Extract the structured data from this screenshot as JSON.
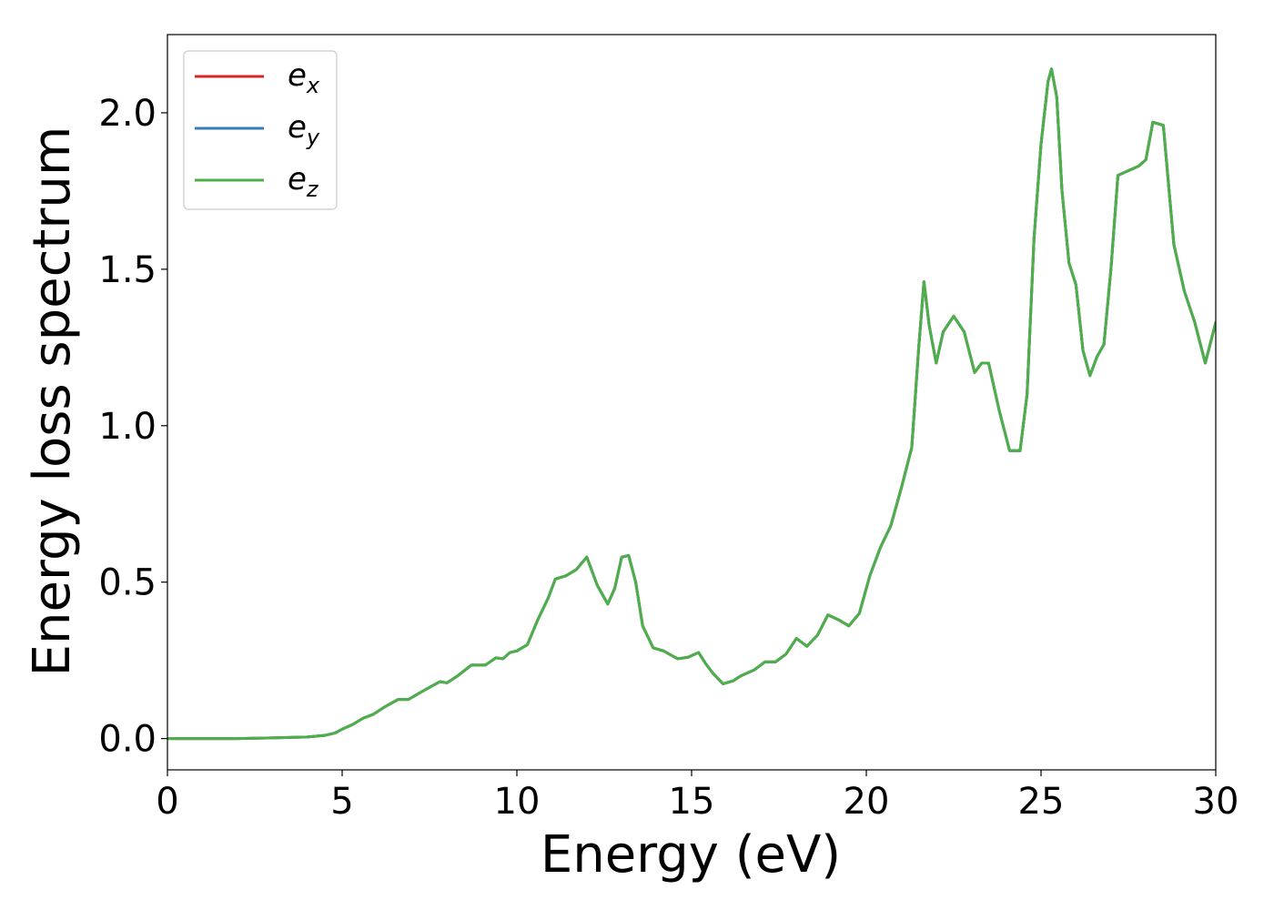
{
  "chart_data": {
    "type": "line",
    "xlabel": "Energy (eV)",
    "ylabel": "Energy loss spectrum",
    "xlim": [
      0,
      30
    ],
    "ylim": [
      -0.1,
      2.25
    ],
    "xticks": [
      0,
      5,
      10,
      15,
      20,
      25,
      30
    ],
    "xtick_labels": [
      "0",
      "5",
      "10",
      "15",
      "20",
      "25",
      "30"
    ],
    "yticks": [
      0.0,
      0.5,
      1.0,
      1.5,
      2.0
    ],
    "ytick_labels": [
      "0.0",
      "0.5",
      "1.0",
      "1.5",
      "2.0"
    ],
    "grid": false,
    "legend_position": "top-left",
    "x": [
      0,
      1,
      2,
      3,
      4,
      4.5,
      4.8,
      5.0,
      5.3,
      5.6,
      5.9,
      6.2,
      6.6,
      6.9,
      7.2,
      7.6,
      7.8,
      8.0,
      8.3,
      8.7,
      9.1,
      9.4,
      9.6,
      9.8,
      10.0,
      10.3,
      10.6,
      10.9,
      11.1,
      11.4,
      11.7,
      12.0,
      12.3,
      12.6,
      12.8,
      13.0,
      13.2,
      13.4,
      13.6,
      13.9,
      14.2,
      14.6,
      14.9,
      15.2,
      15.4,
      15.6,
      15.9,
      16.2,
      16.4,
      16.8,
      17.1,
      17.4,
      17.7,
      18.0,
      18.3,
      18.6,
      18.9,
      19.2,
      19.5,
      19.8,
      20.1,
      20.4,
      20.7,
      21.0,
      21.3,
      21.5,
      21.65,
      21.8,
      22.0,
      22.2,
      22.5,
      22.8,
      23.1,
      23.3,
      23.5,
      23.8,
      24.1,
      24.4,
      24.6,
      24.8,
      25.0,
      25.2,
      25.3,
      25.45,
      25.6,
      25.8,
      26.0,
      26.2,
      26.4,
      26.6,
      26.8,
      27.0,
      27.2,
      27.4,
      27.6,
      27.8,
      28.0,
      28.2,
      28.5,
      28.8,
      29.1,
      29.4,
      29.7,
      30.0
    ],
    "series": [
      {
        "name": "e_x",
        "label_base": "e",
        "label_sub": "x",
        "color": "#d62728",
        "values": [
          0.0,
          0.0,
          0.0,
          0.002,
          0.005,
          0.01,
          0.018,
          0.03,
          0.045,
          0.065,
          0.078,
          0.1,
          0.125,
          0.125,
          0.145,
          0.17,
          0.182,
          0.178,
          0.2,
          0.235,
          0.235,
          0.258,
          0.255,
          0.275,
          0.28,
          0.3,
          0.38,
          0.45,
          0.51,
          0.52,
          0.54,
          0.58,
          0.49,
          0.43,
          0.48,
          0.58,
          0.585,
          0.5,
          0.36,
          0.29,
          0.28,
          0.255,
          0.26,
          0.275,
          0.24,
          0.21,
          0.175,
          0.185,
          0.2,
          0.22,
          0.245,
          0.245,
          0.27,
          0.32,
          0.295,
          0.33,
          0.395,
          0.38,
          0.36,
          0.4,
          0.52,
          0.61,
          0.68,
          0.8,
          0.93,
          1.25,
          1.46,
          1.32,
          1.2,
          1.3,
          1.35,
          1.3,
          1.17,
          1.2,
          1.2,
          1.05,
          0.92,
          0.92,
          1.1,
          1.6,
          1.9,
          2.1,
          2.14,
          2.05,
          1.75,
          1.52,
          1.45,
          1.24,
          1.16,
          1.22,
          1.26,
          1.5,
          1.8,
          1.81,
          1.82,
          1.83,
          1.85,
          1.97,
          1.96,
          1.58,
          1.43,
          1.33,
          1.2,
          1.33
        ]
      },
      {
        "name": "e_y",
        "label_base": "e",
        "label_sub": "y",
        "color": "#377eb8",
        "values": [
          0.0,
          0.0,
          0.0,
          0.002,
          0.005,
          0.01,
          0.018,
          0.03,
          0.045,
          0.065,
          0.078,
          0.1,
          0.125,
          0.125,
          0.145,
          0.17,
          0.182,
          0.178,
          0.2,
          0.235,
          0.235,
          0.258,
          0.255,
          0.275,
          0.28,
          0.3,
          0.38,
          0.45,
          0.51,
          0.52,
          0.54,
          0.58,
          0.49,
          0.43,
          0.48,
          0.58,
          0.585,
          0.5,
          0.36,
          0.29,
          0.28,
          0.255,
          0.26,
          0.275,
          0.24,
          0.21,
          0.175,
          0.185,
          0.2,
          0.22,
          0.245,
          0.245,
          0.27,
          0.32,
          0.295,
          0.33,
          0.395,
          0.38,
          0.36,
          0.4,
          0.52,
          0.61,
          0.68,
          0.8,
          0.93,
          1.25,
          1.46,
          1.32,
          1.2,
          1.3,
          1.35,
          1.3,
          1.17,
          1.2,
          1.2,
          1.05,
          0.92,
          0.92,
          1.1,
          1.6,
          1.9,
          2.1,
          2.14,
          2.05,
          1.75,
          1.52,
          1.45,
          1.24,
          1.16,
          1.22,
          1.26,
          1.5,
          1.8,
          1.81,
          1.82,
          1.83,
          1.85,
          1.97,
          1.96,
          1.58,
          1.43,
          1.33,
          1.2,
          1.33
        ]
      },
      {
        "name": "e_z",
        "label_base": "e",
        "label_sub": "z",
        "color": "#4daf4a",
        "values": [
          0.0,
          0.0,
          0.0,
          0.002,
          0.005,
          0.01,
          0.018,
          0.03,
          0.045,
          0.065,
          0.078,
          0.1,
          0.125,
          0.125,
          0.145,
          0.17,
          0.182,
          0.178,
          0.2,
          0.235,
          0.235,
          0.258,
          0.255,
          0.275,
          0.28,
          0.3,
          0.38,
          0.45,
          0.51,
          0.52,
          0.54,
          0.58,
          0.49,
          0.43,
          0.48,
          0.58,
          0.585,
          0.5,
          0.36,
          0.29,
          0.28,
          0.255,
          0.26,
          0.275,
          0.24,
          0.21,
          0.175,
          0.185,
          0.2,
          0.22,
          0.245,
          0.245,
          0.27,
          0.32,
          0.295,
          0.33,
          0.395,
          0.38,
          0.36,
          0.4,
          0.52,
          0.61,
          0.68,
          0.8,
          0.93,
          1.25,
          1.46,
          1.32,
          1.2,
          1.3,
          1.35,
          1.3,
          1.17,
          1.2,
          1.2,
          1.05,
          0.92,
          0.92,
          1.1,
          1.6,
          1.9,
          2.1,
          2.14,
          2.05,
          1.75,
          1.52,
          1.45,
          1.24,
          1.16,
          1.22,
          1.26,
          1.5,
          1.8,
          1.81,
          1.82,
          1.83,
          1.85,
          1.97,
          1.96,
          1.58,
          1.43,
          1.33,
          1.2,
          1.33
        ]
      }
    ]
  }
}
